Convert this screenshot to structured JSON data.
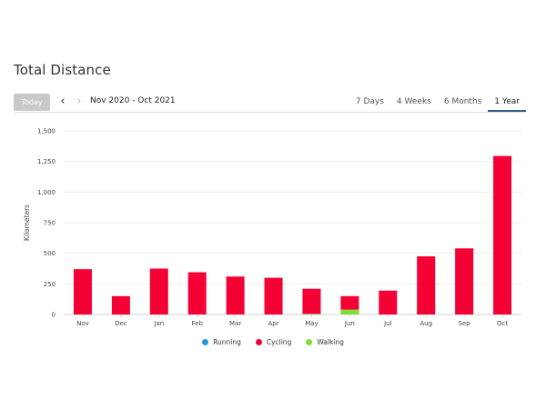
{
  "page": {
    "title": "Total Distance"
  },
  "toolbar": {
    "today_label": "Today",
    "prev_icon": "chevron-left-icon",
    "next_icon": "chevron-right-icon",
    "range_label": "Nov 2020 - Oct 2021",
    "tabs": [
      {
        "label": "7 Days",
        "active": false
      },
      {
        "label": "4 Weeks",
        "active": false
      },
      {
        "label": "6 Months",
        "active": false
      },
      {
        "label": "1 Year",
        "active": true
      }
    ]
  },
  "legend": [
    {
      "label": "Running",
      "color": "#1e9bd7"
    },
    {
      "label": "Cycling",
      "color": "#f50034"
    },
    {
      "label": "Walking",
      "color": "#7fdc3a"
    }
  ],
  "chart_data": {
    "type": "bar",
    "stacked": true,
    "categories": [
      "Nov",
      "Dec",
      "Jan",
      "Feb",
      "Mar",
      "Apr",
      "May",
      "Jun",
      "Jul",
      "Aug",
      "Sep",
      "Oct"
    ],
    "series": [
      {
        "name": "Running",
        "color": "#1e9bd7",
        "values": [
          0,
          0,
          0,
          0,
          0,
          0,
          0,
          0,
          0,
          0,
          0,
          0
        ]
      },
      {
        "name": "Walking",
        "color": "#7fdc3a",
        "values": [
          0,
          0,
          0,
          0,
          0,
          0,
          5,
          40,
          0,
          0,
          0,
          0
        ]
      },
      {
        "name": "Cycling",
        "color": "#f50034",
        "values": [
          370,
          150,
          375,
          345,
          310,
          300,
          205,
          110,
          195,
          475,
          540,
          1295
        ]
      }
    ],
    "ylabel": "Kilometers",
    "xlabel": "",
    "ylim": [
      0,
      1500
    ],
    "yticks": [
      0,
      250,
      500,
      750,
      1000,
      1250,
      1500
    ],
    "ytick_labels": [
      "0",
      "250",
      "500",
      "750",
      "1,000",
      "1,250",
      "1,500"
    ],
    "grid": true,
    "legend_position": "bottom"
  }
}
